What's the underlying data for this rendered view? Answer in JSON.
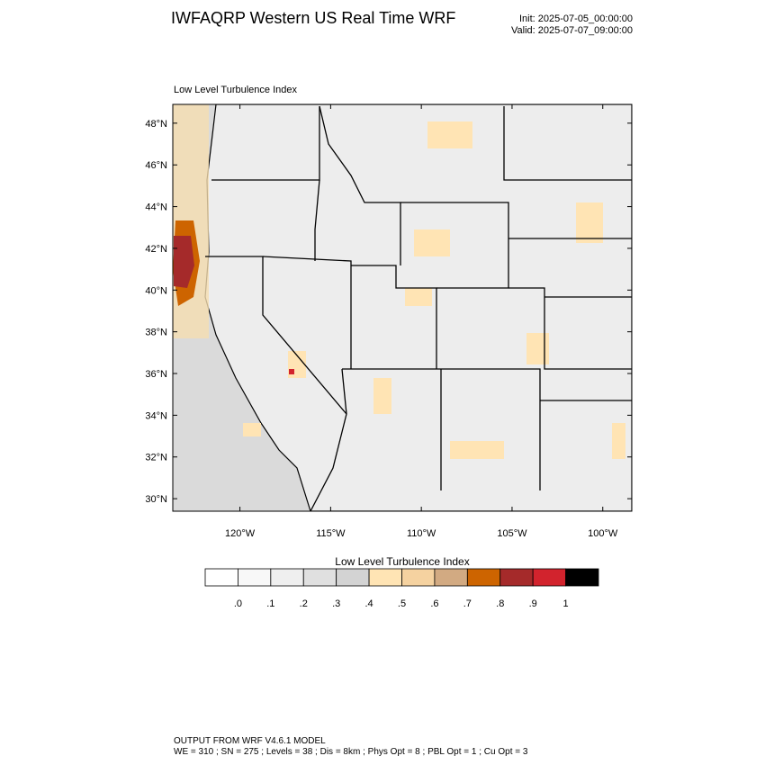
{
  "header": {
    "title": "IWFAQRP Western US Real Time WRF",
    "init": "Init: 2025-07-05_00:00:00",
    "valid": "Valid: 2025-07-07_09:00:00"
  },
  "map": {
    "title": "Low Level Turbulence Index",
    "latlim": [
      29.4,
      48.9
    ],
    "lonlim": [
      -123.7,
      -98.4
    ],
    "latticks": [
      {
        "value": 30,
        "label": "30°N"
      },
      {
        "value": 32,
        "label": "32°N"
      },
      {
        "value": 34,
        "label": "34°N"
      },
      {
        "value": 36,
        "label": "36°N"
      },
      {
        "value": 38,
        "label": "38°N"
      },
      {
        "value": 40,
        "label": "40°N"
      },
      {
        "value": 42,
        "label": "42°N"
      },
      {
        "value": 44,
        "label": "44°N"
      },
      {
        "value": 46,
        "label": "46°N"
      },
      {
        "value": 48,
        "label": "48°N"
      }
    ],
    "lonticks": [
      {
        "value": -120,
        "label": "120°W"
      },
      {
        "value": -115,
        "label": "115°W"
      },
      {
        "value": -110,
        "label": "110°W"
      },
      {
        "value": -105,
        "label": "105°W"
      },
      {
        "value": -100,
        "label": "100°W"
      }
    ]
  },
  "colorbar": {
    "title": "Low Level Turbulence Index",
    "colors": [
      "#ffffff",
      "#f8f8f8",
      "#efefef",
      "#e0e0e0",
      "#d3d3d3",
      "#ffe4b4",
      "#f5d2a0",
      "#d2aa82",
      "#cd6400",
      "#a52a2a",
      "#d2232d",
      "#000000"
    ],
    "ticks": [
      {
        "value": 0,
        "label": ".0"
      },
      {
        "value": 0.1,
        "label": ".1"
      },
      {
        "value": 0.2,
        "label": ".2"
      },
      {
        "value": 0.3,
        "label": ".3"
      },
      {
        "value": 0.4,
        "label": ".4"
      },
      {
        "value": 0.5,
        "label": ".5"
      },
      {
        "value": 0.6,
        "label": ".6"
      },
      {
        "value": 0.7,
        "label": ".7"
      },
      {
        "value": 0.8,
        "label": ".8"
      },
      {
        "value": 0.9,
        "label": ".9"
      },
      {
        "value": 1,
        "label": "1"
      }
    ]
  },
  "footer": {
    "lines": [
      "OUTPUT FROM WRF V4.6.1 MODEL",
      "WE = 310 ; SN = 275 ; Levels = 38 ; Dis = 8km ; Phys Opt = 8 ; PBL Opt = 1 ; Cu Opt = 3"
    ]
  }
}
